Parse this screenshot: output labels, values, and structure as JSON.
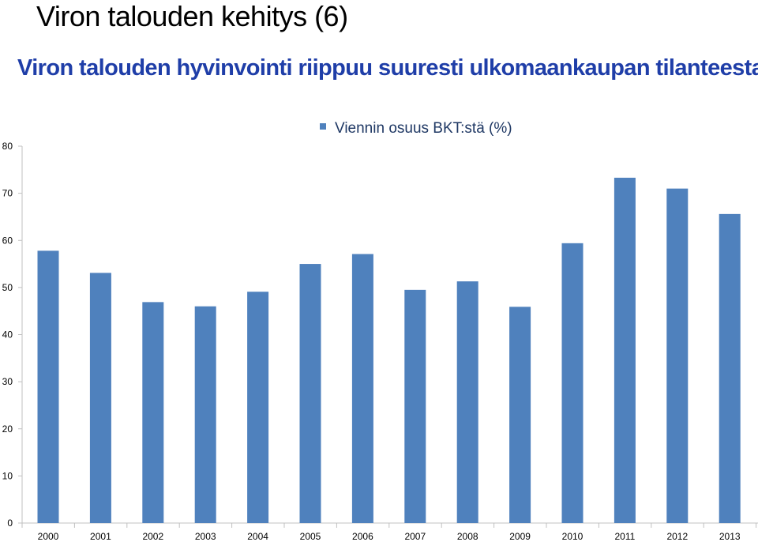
{
  "slide": {
    "title": "Viron talouden kehitys (6)",
    "subtitle": "Viron talouden hyvinvointi riippuu suuresti ulkomaankaupan tilanteesta"
  },
  "colors": {
    "bar": "#4f81bd",
    "title": "#000000",
    "subtitle": "#1f3ea8",
    "legend_text": "#1f3864",
    "axis": "#c0c0c0"
  },
  "chart_data": {
    "type": "bar",
    "title": "",
    "xlabel": "",
    "ylabel": "",
    "categories": [
      "2000",
      "2001",
      "2002",
      "2003",
      "2004",
      "2005",
      "2006",
      "2007",
      "2008",
      "2009",
      "2010",
      "2011",
      "2012",
      "2013"
    ],
    "series": [
      {
        "name": "Viennin osuus BKT:stä (%)",
        "values": [
          57.8,
          53.1,
          46.9,
          46.0,
          49.1,
          55.0,
          57.1,
          49.5,
          51.3,
          45.9,
          59.4,
          73.3,
          71.0,
          65.6
        ]
      }
    ],
    "ylim": [
      0,
      80
    ],
    "yticks": [
      0,
      10,
      20,
      30,
      40,
      50,
      60,
      70,
      80
    ],
    "grid": false,
    "legend_position": "top"
  }
}
